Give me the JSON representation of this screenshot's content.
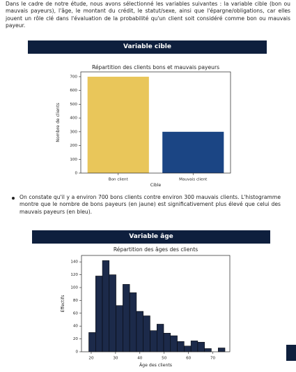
{
  "intro": "Dans le cadre de notre étude, nous avons sélectionné les variables suivantes : la variable cible (bon ou mauvais payeurs), l'âge, le montant du crédit, le statut/sexe, ainsi que l'épargne/obligations, car elles jouent un rôle clé dans l'évaluation de la probabilité qu'un client soit considéré comme bon ou mauvais payeur.",
  "sections": [
    {
      "heading": "Variable cible",
      "bullet": "On constate qu'il y a environ 700 bons clients contre environ 300 mauvais clients. L'histogramme montre que le nombre de bons payeurs (en jaune) est significativement plus élevé que celui des mauvais payeurs (en bleu)."
    },
    {
      "heading": "Variable âge"
    }
  ],
  "chart_data": [
    {
      "type": "bar",
      "title": "Répartition des clients bons et mauvais payeurs",
      "x_label": "Cible",
      "y_label": "Nombre de clients",
      "categories": [
        "Bon client",
        "Mauvais client"
      ],
      "values": [
        700,
        300
      ],
      "colors": [
        "#e9c65a",
        "#1b4584"
      ],
      "ylim": [
        0,
        735
      ],
      "yticks": [
        0,
        100,
        200,
        300,
        400,
        500,
        600,
        700
      ]
    },
    {
      "type": "histogram",
      "title": "Répartition des âges des clients",
      "x_label": "Âge des clients",
      "y_label": "Effectifs",
      "bins": [
        19,
        21.8,
        24.6,
        27.4,
        30.2,
        33,
        35.8,
        38.6,
        41.4,
        44.2,
        47,
        49.8,
        52.6,
        55.4,
        58.2,
        61,
        63.8,
        66.6,
        69.4,
        72.2,
        75
      ],
      "values": [
        30,
        118,
        142,
        120,
        72,
        105,
        92,
        63,
        56,
        33,
        43,
        29,
        25,
        16,
        9,
        17,
        15,
        5,
        0,
        6
      ],
      "color": "#1c2a4a",
      "xlim": [
        16,
        77
      ],
      "xticks": [
        20,
        30,
        40,
        50,
        60,
        70
      ],
      "ylim": [
        0,
        150
      ],
      "yticks": [
        0,
        20,
        40,
        60,
        80,
        100,
        120,
        140
      ]
    }
  ]
}
